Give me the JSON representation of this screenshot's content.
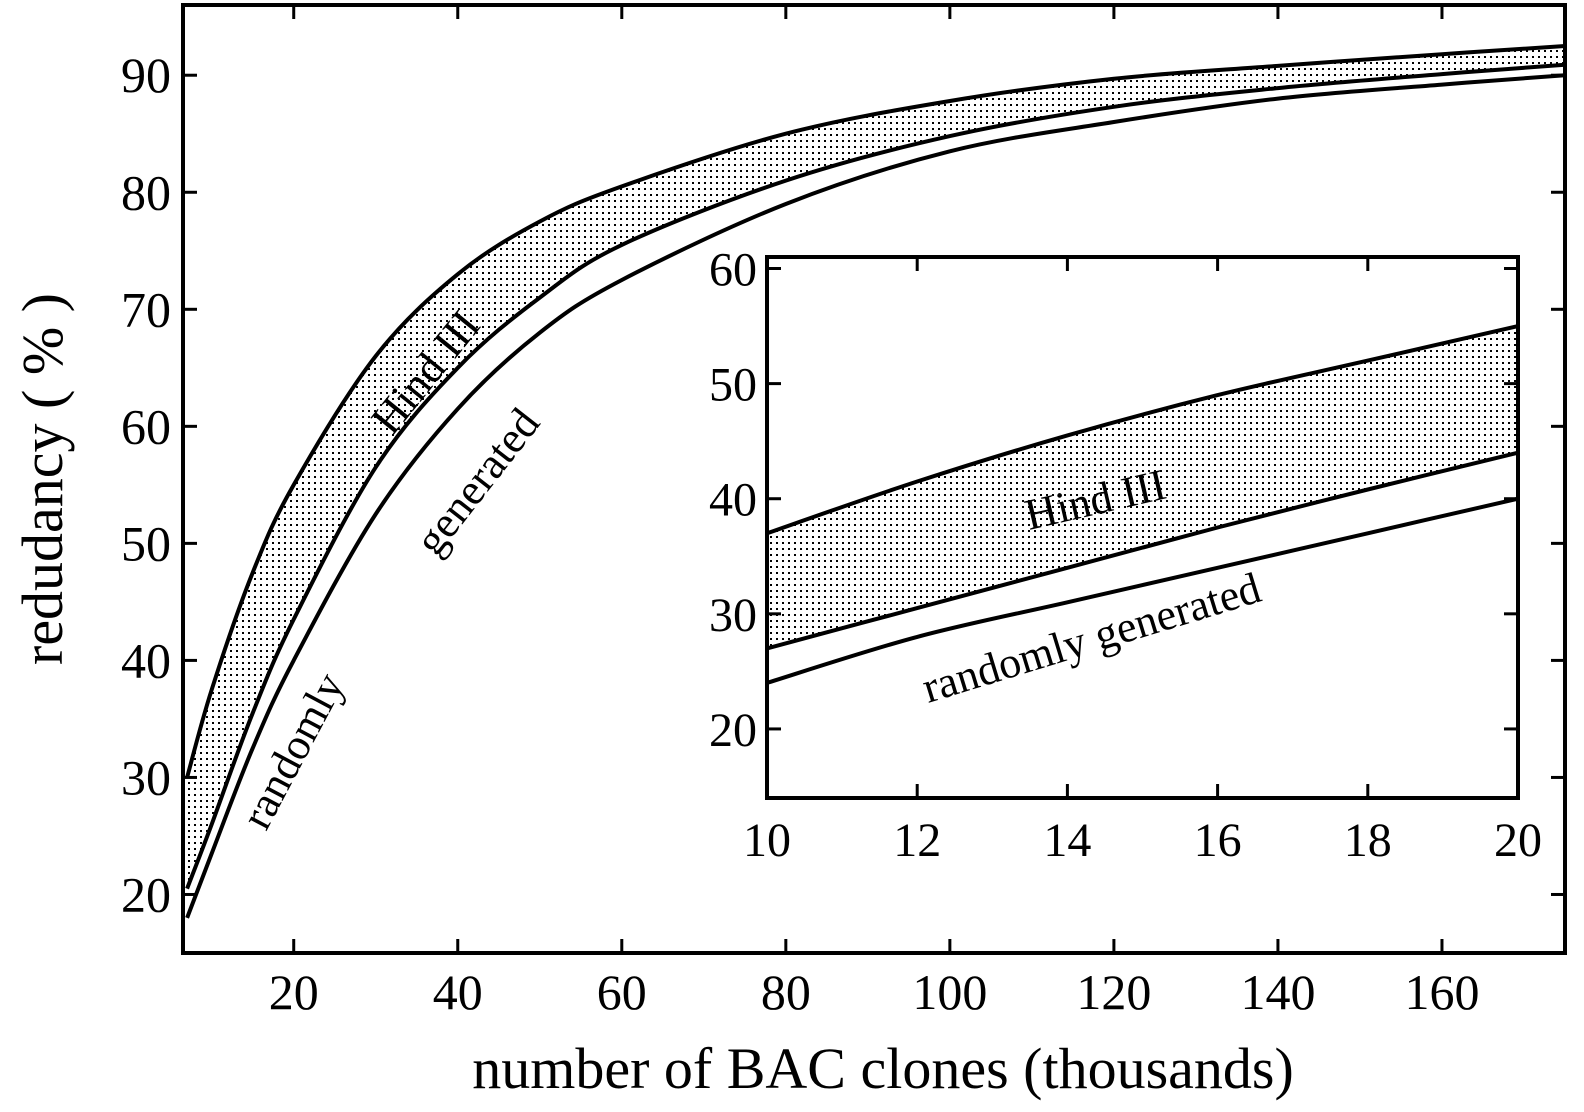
{
  "chart_data": [
    {
      "type": "area",
      "xlabel": "number of BAC clones (thousands)",
      "ylabel": "redudancy ( % )",
      "xlim": [
        6.5,
        175
      ],
      "ylim": [
        15,
        96
      ],
      "xticks": [
        20,
        40,
        60,
        80,
        100,
        120,
        140,
        160
      ],
      "yticks": [
        20,
        30,
        40,
        50,
        60,
        70,
        80,
        90
      ],
      "grid": false,
      "legend": "none",
      "x": [
        7,
        10,
        15,
        20,
        30,
        40,
        50,
        60,
        80,
        100,
        120,
        140,
        160,
        175
      ],
      "series": [
        {
          "name": "Hind III",
          "role": "band-upper",
          "values": [
            30,
            37.5,
            47.5,
            55,
            66,
            73,
            77.5,
            80.5,
            85,
            87.8,
            89.7,
            90.8,
            91.8,
            92.5
          ]
        },
        {
          "name": "Hind III",
          "role": "band-lower",
          "values": [
            20.5,
            26,
            35.5,
            43.5,
            56.5,
            65,
            71,
            75.5,
            81,
            84.8,
            87.3,
            88.9,
            90.1,
            90.9
          ]
        },
        {
          "name": "randomly generated",
          "role": "line",
          "values": [
            18,
            23.5,
            32.5,
            40,
            52.5,
            61.5,
            68,
            72.5,
            79,
            83.5,
            86,
            88,
            89.2,
            90
          ]
        }
      ],
      "annotations": [
        "Hind III",
        "randomly",
        "generated"
      ]
    },
    {
      "type": "area",
      "role": "inset",
      "xlim": [
        10,
        20
      ],
      "ylim": [
        14,
        61
      ],
      "xticks": [
        10,
        12,
        14,
        16,
        18,
        20
      ],
      "yticks": [
        20,
        30,
        40,
        50,
        60
      ],
      "grid": false,
      "legend": "none",
      "x": [
        10,
        12,
        14,
        16,
        18,
        20
      ],
      "series": [
        {
          "name": "Hind III",
          "role": "band-upper",
          "values": [
            37,
            41.5,
            45.5,
            49,
            52,
            55
          ]
        },
        {
          "name": "Hind III",
          "role": "band-lower",
          "values": [
            27,
            30.5,
            34,
            37.5,
            40.8,
            44
          ]
        },
        {
          "name": "randomly generated",
          "role": "line",
          "values": [
            24,
            28,
            31,
            34,
            37,
            40
          ]
        }
      ],
      "annotations": [
        "Hind III",
        "randomly generated"
      ]
    }
  ],
  "colors": {
    "ink": "#000000",
    "background": "#ffffff"
  }
}
